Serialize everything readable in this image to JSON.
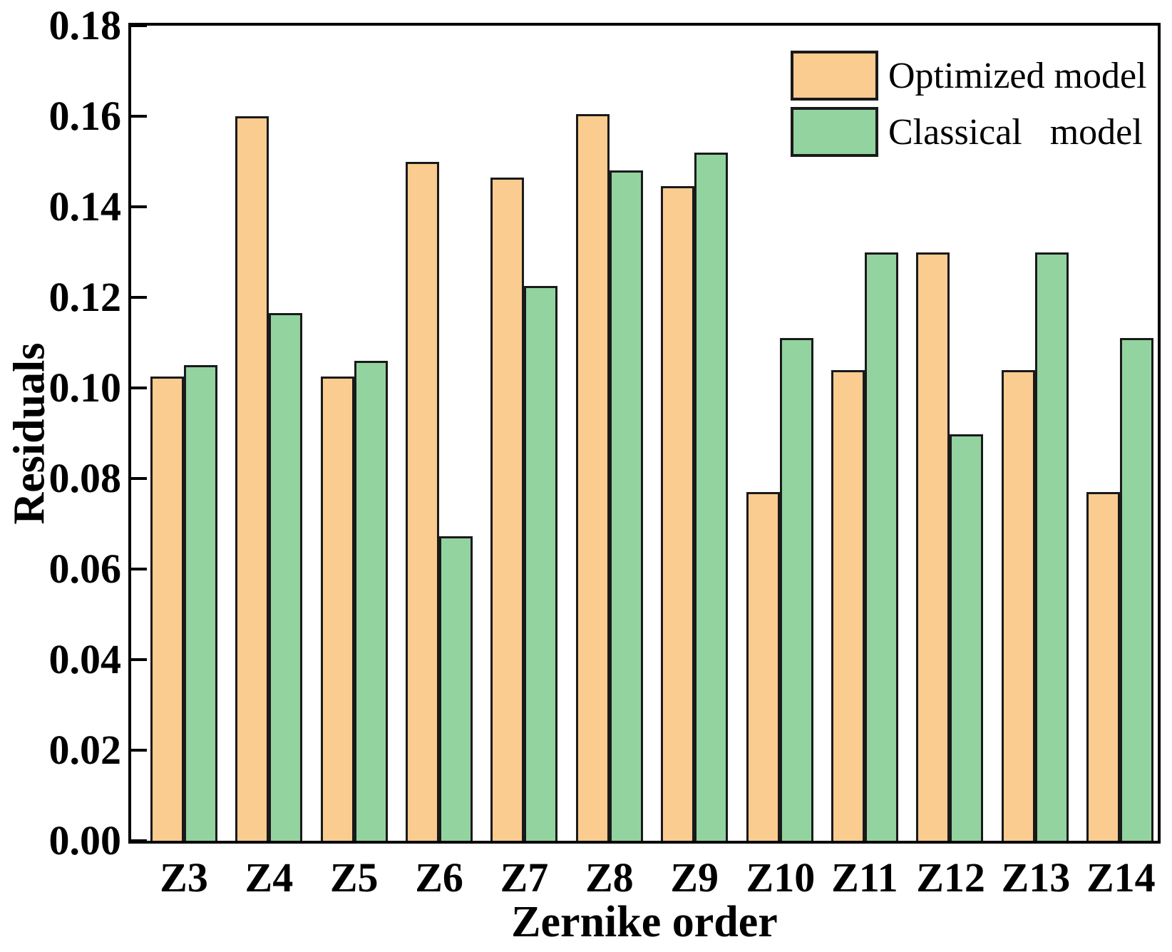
{
  "figure": {
    "background": "#ffffff",
    "frame_color": "#000000"
  },
  "chart_data": {
    "type": "bar",
    "title": "",
    "xlabel": "Zernike order",
    "ylabel": "Residuals",
    "categories": [
      "Z3",
      "Z4",
      "Z5",
      "Z6",
      "Z7",
      "Z8",
      "Z9",
      "Z10",
      "Z11",
      "Z12",
      "Z13",
      "Z14"
    ],
    "series": [
      {
        "name": "Optimized model",
        "color": "#FACC90",
        "values": [
          0.1025,
          0.16,
          0.1025,
          0.15,
          0.1465,
          0.1605,
          0.1445,
          0.077,
          0.104,
          0.13,
          0.104,
          0.077
        ]
      },
      {
        "name": "Classical model",
        "color": "#92D3A0",
        "values": [
          0.105,
          0.1165,
          0.106,
          0.0672,
          0.1225,
          0.148,
          0.152,
          0.111,
          0.13,
          0.0897,
          0.13,
          0.111
        ]
      }
    ],
    "ylim": [
      0,
      0.18
    ],
    "ytick_step": 0.02,
    "ytick_labels": [
      "0.00",
      "0.02",
      "0.04",
      "0.06",
      "0.08",
      "0.10",
      "0.12",
      "0.14",
      "0.16",
      "0.18"
    ],
    "grid": false,
    "legend_position": "top-right-inside",
    "bar_border_color": "#1a1a1a"
  },
  "legend": {
    "items": [
      {
        "label": "Optimized model",
        "color": "#FACC90"
      },
      {
        "label": "Classical  model",
        "color": "#92D3A0"
      }
    ]
  }
}
